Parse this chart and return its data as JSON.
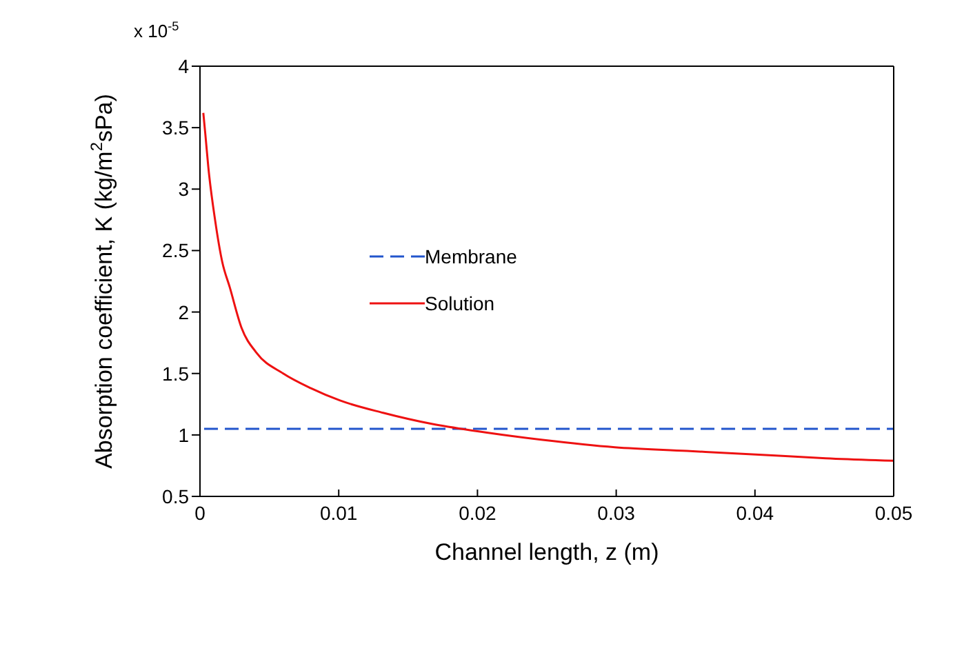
{
  "chart_data": {
    "type": "line",
    "xlabel": "Channel length, z (m)",
    "ylabel": "Absorption coefficient, K (kg/m$^{2}$sPa)",
    "annotations": [
      "x 10$^{-5}$"
    ],
    "xlim": [
      0,
      0.05
    ],
    "xticks": [
      0,
      0.01,
      0.02,
      0.03,
      0.04,
      0.05
    ],
    "ylim": [
      0.5,
      4
    ],
    "yticks": [
      0.5,
      1,
      1.5,
      2,
      2.5,
      3,
      3.5,
      4
    ],
    "grid": false,
    "legend": "center",
    "marker": "none",
    "series": [
      {
        "name": "Membrane",
        "color": "#2255cc",
        "line_style": "dashed",
        "x": [
          0.0003,
          0.05
        ],
        "values": [
          1.05,
          1.05
        ]
      },
      {
        "name": "Solution",
        "color": "#ee1111",
        "line_style": "solid",
        "x": [
          0.00024,
          0.0004,
          0.0006,
          0.0011,
          0.0016,
          0.00215,
          0.003,
          0.00406,
          0.006,
          0.008,
          0.0101,
          0.0132,
          0.0167,
          0.02,
          0.0247,
          0.0299,
          0.0351,
          0.0403,
          0.0451,
          0.05
        ],
        "values": [
          3.62,
          3.43,
          3.18,
          2.74,
          2.41,
          2.2,
          1.87,
          1.67,
          1.5,
          1.38,
          1.28,
          1.18,
          1.09,
          1.03,
          0.96,
          0.9,
          0.87,
          0.84,
          0.81,
          0.79
        ]
      }
    ]
  }
}
